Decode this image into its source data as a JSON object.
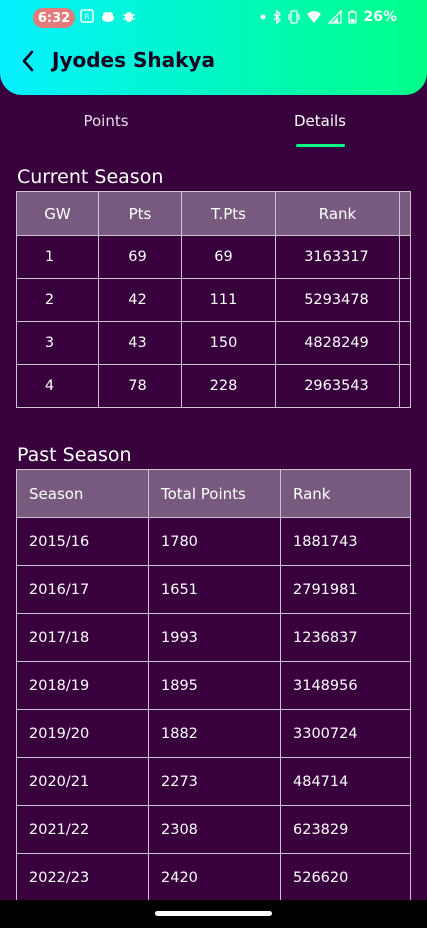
{
  "status_bar": {
    "time": "6:32",
    "battery": "26%",
    "icons_left": [
      "nfc-icon",
      "cloud-icon",
      "bug-icon"
    ],
    "icons_right": [
      "dot-icon",
      "bluetooth-icon",
      "vibrate-icon",
      "wifi-icon",
      "signal-icon",
      "battery-icon"
    ]
  },
  "header": {
    "title": "Jyodes Shakya",
    "gradient_start": "#05f0ff",
    "gradient_end": "#00ff87"
  },
  "tabs": [
    {
      "label": "Points",
      "selected": false
    },
    {
      "label": "Details",
      "selected": true
    }
  ],
  "current_season": {
    "title": "Current Season",
    "columns": [
      "GW",
      "Pts",
      "T.Pts",
      "Rank"
    ],
    "rows": [
      [
        "1",
        "69",
        "69",
        "3163317"
      ],
      [
        "2",
        "42",
        "111",
        "5293478"
      ],
      [
        "3",
        "43",
        "150",
        "4828249"
      ],
      [
        "4",
        "78",
        "228",
        "2963543"
      ]
    ]
  },
  "past_season": {
    "title": "Past Season",
    "columns": [
      "Season",
      "Total Points",
      "Rank"
    ],
    "rows": [
      [
        "2015/16",
        "1780",
        "1881743"
      ],
      [
        "2016/17",
        "1651",
        "2791981"
      ],
      [
        "2017/18",
        "1993",
        "1236837"
      ],
      [
        "2018/19",
        "1895",
        "3148956"
      ],
      [
        "2019/20",
        "1882",
        "3300724"
      ],
      [
        "2020/21",
        "2273",
        "484714"
      ],
      [
        "2021/22",
        "2308",
        "623829"
      ],
      [
        "2022/23",
        "2420",
        "526620"
      ]
    ]
  },
  "colors": {
    "background": "#38003c",
    "table_header": "#785a7f",
    "accent": "#00ff87"
  }
}
